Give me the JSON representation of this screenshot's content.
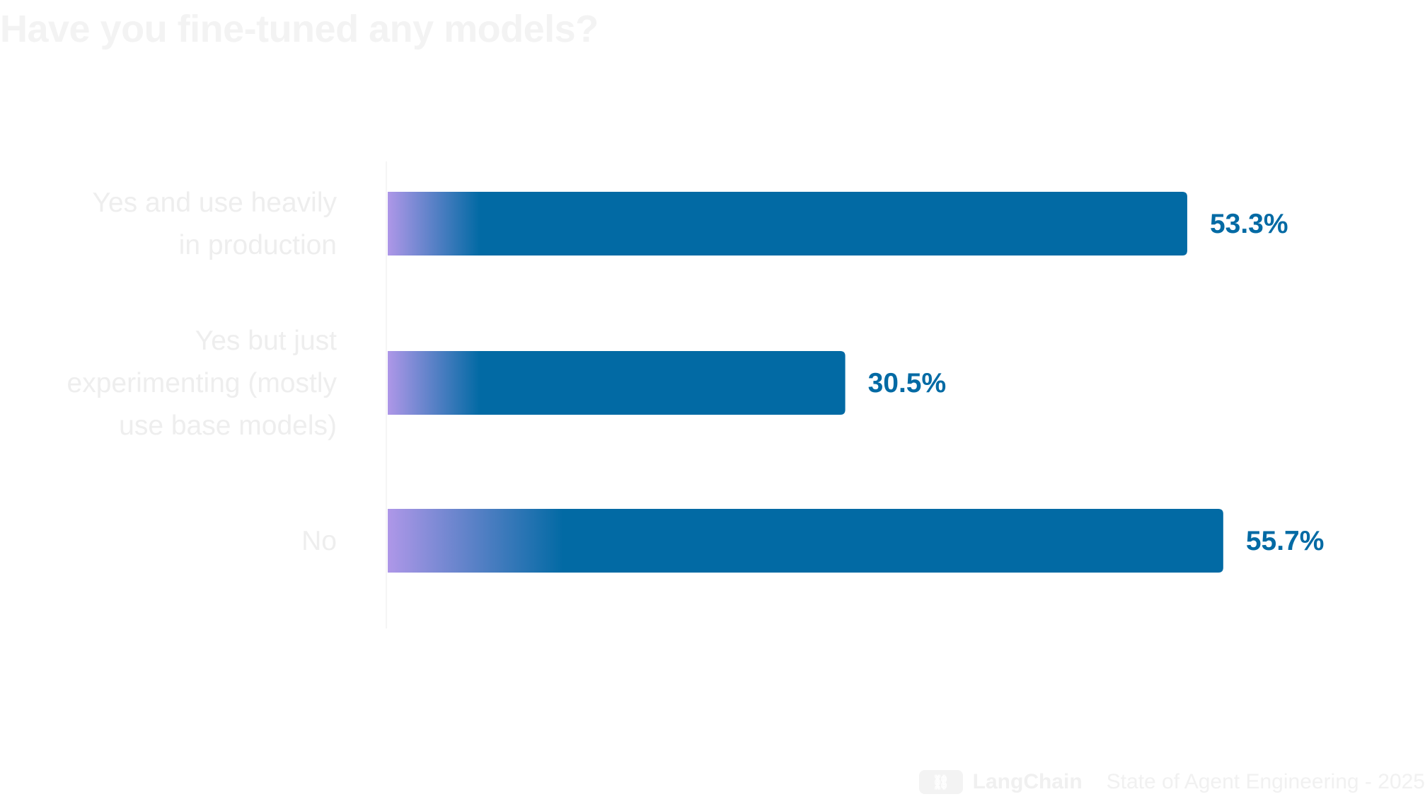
{
  "title": "Have you fine-tuned any models?",
  "footer": {
    "brand": "LangChain",
    "subtitle": "State of Agent Engineering - 2025",
    "logo_icon": "langchain-logo"
  },
  "colors": {
    "bar": "#026aa4",
    "bar_gradient_start": "#ae97e8",
    "value_label": "#026aa4",
    "category_label": "#eeeeee",
    "axis_line": "#f5f5f5"
  },
  "chart_data": {
    "type": "bar",
    "orientation": "horizontal",
    "title": "Have you fine-tuned any models?",
    "categories": [
      "Yes and use heavily in production",
      "Yes but just experimenting (mostly use base models)",
      "No"
    ],
    "category_lines": [
      [
        "Yes and use heavily",
        "in production"
      ],
      [
        "Yes but just",
        "experimenting (mostly",
        "use base models)"
      ],
      [
        "No"
      ]
    ],
    "values": [
      53.3,
      30.5,
      55.7
    ],
    "value_labels": [
      "53.3%",
      "30.5%",
      "55.7%"
    ],
    "unit": "%",
    "xlim": [
      0,
      64
    ],
    "grid": false,
    "legend": "none"
  }
}
